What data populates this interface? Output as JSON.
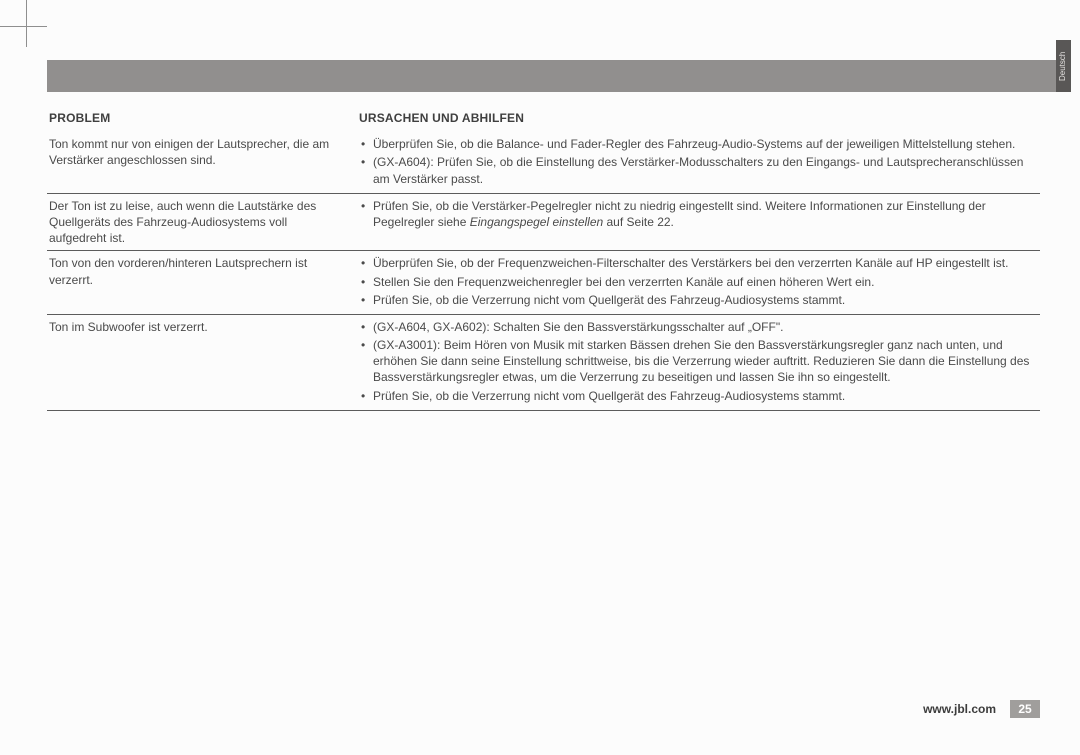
{
  "langTab": "Deutsch",
  "headers": {
    "problem": "PROBLEM",
    "cause": "URSACHEN UND ABHILFEN"
  },
  "rows": [
    {
      "problem": "Ton kommt nur von einigen der Lautsprecher, die am Verstärker angeschlossen sind.",
      "causes": [
        "Überprüfen Sie, ob die Balance- und Fader-Regler des Fahrzeug-Audio-Systems auf der jeweiligen Mittelstellung stehen.",
        "(GX-A604): Prüfen Sie, ob die Einstellung des Verstärker-Modusschalters zu den Eingangs- und Lautsprecheranschlüssen am Verstärker passt."
      ]
    },
    {
      "problem": "Der Ton ist zu leise, auch wenn die Lautstärke des Quellgeräts des Fahrzeug-Audiosystems  voll aufgedreht ist.",
      "causes": [
        "Prüfen Sie, ob die Verstärker-Pegelregler nicht zu niedrig eingestellt sind. Weitere Informationen zur Einstellung der Pegelregler siehe Eingangspegel einstellen auf Seite 22."
      ]
    },
    {
      "problem": "Ton von den vorderen/hinteren Lautsprechern ist verzerrt.",
      "causes": [
        "Überprüfen Sie, ob der Frequenzweichen-Filterschalter des Verstärkers bei den verzerrten Kanäle auf HP eingestellt ist.",
        "Stellen Sie den Frequenzweichenregler bei den verzerrten Kanäle auf einen höheren Wert ein.",
        "Prüfen Sie, ob die Verzerrung nicht vom Quellgerät des Fahrzeug-Audiosystems stammt."
      ]
    },
    {
      "problem": "Ton im Subwoofer ist verzerrt.",
      "causes": [
        "(GX-A604, GX-A602): Schalten Sie den Bassverstärkungsschalter auf „OFF\".",
        "(GX-A3001): Beim Hören von Musik mit starken Bässen drehen Sie den Bassverstärkungsregler ganz nach unten, und erhöhen Sie dann seine Einstellung schrittweise, bis die Verzerrung wieder auftritt. Reduzieren Sie dann die Einstellung des Bassverstärkungsregler etwas, um die Verzerrung zu beseitigen und lassen Sie ihn so eingestellt.",
        "Prüfen Sie, ob die Verzerrung nicht vom Quellgerät des Fahrzeug-Audiosystems stammt."
      ]
    }
  ],
  "footer": {
    "url": "www.jbl.com",
    "page": "25"
  }
}
